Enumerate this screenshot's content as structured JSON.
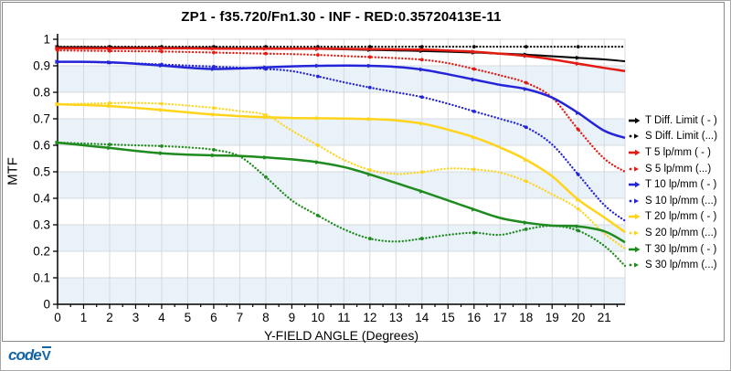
{
  "colors": {
    "band": "#e9f1f9",
    "grid": "#d5dade",
    "axis": "#000000",
    "frame": "#8a8a8a",
    "logo_blue": "#1464a8"
  },
  "logo": {
    "text": "code",
    "mark": "V"
  },
  "chart_data": {
    "type": "line",
    "title": "ZP1 - f35.720/Fn1.30 - INF - RED:0.35720413E-11",
    "xlabel": "Y-FIELD ANGLE (Degrees)",
    "ylabel": "MTF",
    "xlim": [
      0,
      21.8
    ],
    "ylim": [
      0,
      1
    ],
    "grid": true,
    "legend_position": "right",
    "xticks": [
      0,
      1,
      2,
      3,
      4,
      5,
      6,
      7,
      8,
      9,
      10,
      11,
      12,
      13,
      14,
      15,
      16,
      17,
      18,
      19,
      20,
      21
    ],
    "yticks": [
      0,
      0.1,
      0.2,
      0.3,
      0.4,
      0.5,
      0.6,
      0.7,
      0.8,
      0.9,
      1
    ],
    "x": [
      0,
      1,
      2,
      3,
      4,
      5,
      6,
      7,
      8,
      9,
      10,
      11,
      12,
      13,
      14,
      15,
      16,
      17,
      18,
      19,
      20,
      21,
      21.8
    ],
    "series": [
      {
        "name": "T Diff. Limit ( - )",
        "color": "#0a0a0a",
        "style": "solid",
        "values": [
          0.97,
          0.97,
          0.969,
          0.969,
          0.968,
          0.968,
          0.967,
          0.966,
          0.966,
          0.965,
          0.964,
          0.962,
          0.96,
          0.958,
          0.956,
          0.953,
          0.95,
          0.946,
          0.942,
          0.936,
          0.93,
          0.924,
          0.917
        ]
      },
      {
        "name": "S Diff. Limit (...)",
        "color": "#0a0a0a",
        "style": "dotted",
        "values": [
          0.972,
          0.972,
          0.972,
          0.972,
          0.972,
          0.972,
          0.972,
          0.972,
          0.972,
          0.972,
          0.972,
          0.972,
          0.972,
          0.972,
          0.972,
          0.972,
          0.972,
          0.972,
          0.972,
          0.972,
          0.972,
          0.972,
          0.972
        ]
      },
      {
        "name": "T 5 lp/mm ( - )",
        "color": "#e31b12",
        "style": "solid",
        "values": [
          0.966,
          0.966,
          0.966,
          0.966,
          0.966,
          0.966,
          0.965,
          0.965,
          0.965,
          0.965,
          0.965,
          0.964,
          0.963,
          0.962,
          0.961,
          0.958,
          0.953,
          0.946,
          0.937,
          0.924,
          0.908,
          0.892,
          0.88
        ]
      },
      {
        "name": "S 5 lp/mm (...)",
        "color": "#e31b12",
        "style": "dotted",
        "values": [
          0.958,
          0.957,
          0.956,
          0.955,
          0.954,
          0.952,
          0.95,
          0.948,
          0.946,
          0.944,
          0.941,
          0.937,
          0.933,
          0.929,
          0.923,
          0.91,
          0.888,
          0.864,
          0.836,
          0.78,
          0.66,
          0.55,
          0.5
        ]
      },
      {
        "name": "T 10 lp/mm ( - )",
        "color": "#2424d8",
        "style": "solid",
        "values": [
          0.915,
          0.915,
          0.913,
          0.908,
          0.901,
          0.893,
          0.888,
          0.89,
          0.894,
          0.898,
          0.9,
          0.901,
          0.9,
          0.896,
          0.886,
          0.868,
          0.848,
          0.828,
          0.812,
          0.78,
          0.722,
          0.655,
          0.628
        ]
      },
      {
        "name": "S 10 lp/mm (...)",
        "color": "#2424d8",
        "style": "dotted",
        "values": [
          0.915,
          0.914,
          0.912,
          0.909,
          0.905,
          0.901,
          0.897,
          0.893,
          0.888,
          0.88,
          0.86,
          0.838,
          0.818,
          0.8,
          0.782,
          0.757,
          0.728,
          0.7,
          0.668,
          0.603,
          0.49,
          0.375,
          0.315
        ]
      },
      {
        "name": "T 20 lp/mm ( - )",
        "color": "#ffd41a",
        "style": "solid",
        "values": [
          0.755,
          0.752,
          0.748,
          0.741,
          0.733,
          0.724,
          0.716,
          0.71,
          0.706,
          0.703,
          0.702,
          0.701,
          0.699,
          0.694,
          0.682,
          0.659,
          0.63,
          0.592,
          0.545,
          0.483,
          0.395,
          0.328,
          0.272
        ]
      },
      {
        "name": "S 20 lp/mm (...)",
        "color": "#ffd41a",
        "style": "dotted",
        "values": [
          0.755,
          0.757,
          0.759,
          0.76,
          0.757,
          0.75,
          0.741,
          0.729,
          0.714,
          0.655,
          0.6,
          0.545,
          0.507,
          0.492,
          0.499,
          0.512,
          0.509,
          0.497,
          0.464,
          0.415,
          0.36,
          0.268,
          0.21
        ]
      },
      {
        "name": "T 30 lp/mm ( - )",
        "color": "#1f8b1f",
        "style": "solid",
        "values": [
          0.61,
          0.6,
          0.59,
          0.579,
          0.57,
          0.565,
          0.562,
          0.56,
          0.554,
          0.547,
          0.536,
          0.518,
          0.49,
          0.458,
          0.426,
          0.392,
          0.358,
          0.326,
          0.308,
          0.297,
          0.294,
          0.276,
          0.234
        ]
      },
      {
        "name": "S 30 lp/mm (...)",
        "color": "#1f8b1f",
        "style": "dotted",
        "values": [
          0.61,
          0.607,
          0.603,
          0.6,
          0.597,
          0.592,
          0.583,
          0.558,
          0.48,
          0.392,
          0.335,
          0.283,
          0.248,
          0.237,
          0.248,
          0.262,
          0.27,
          0.262,
          0.283,
          0.296,
          0.278,
          0.221,
          0.145
        ]
      }
    ]
  }
}
